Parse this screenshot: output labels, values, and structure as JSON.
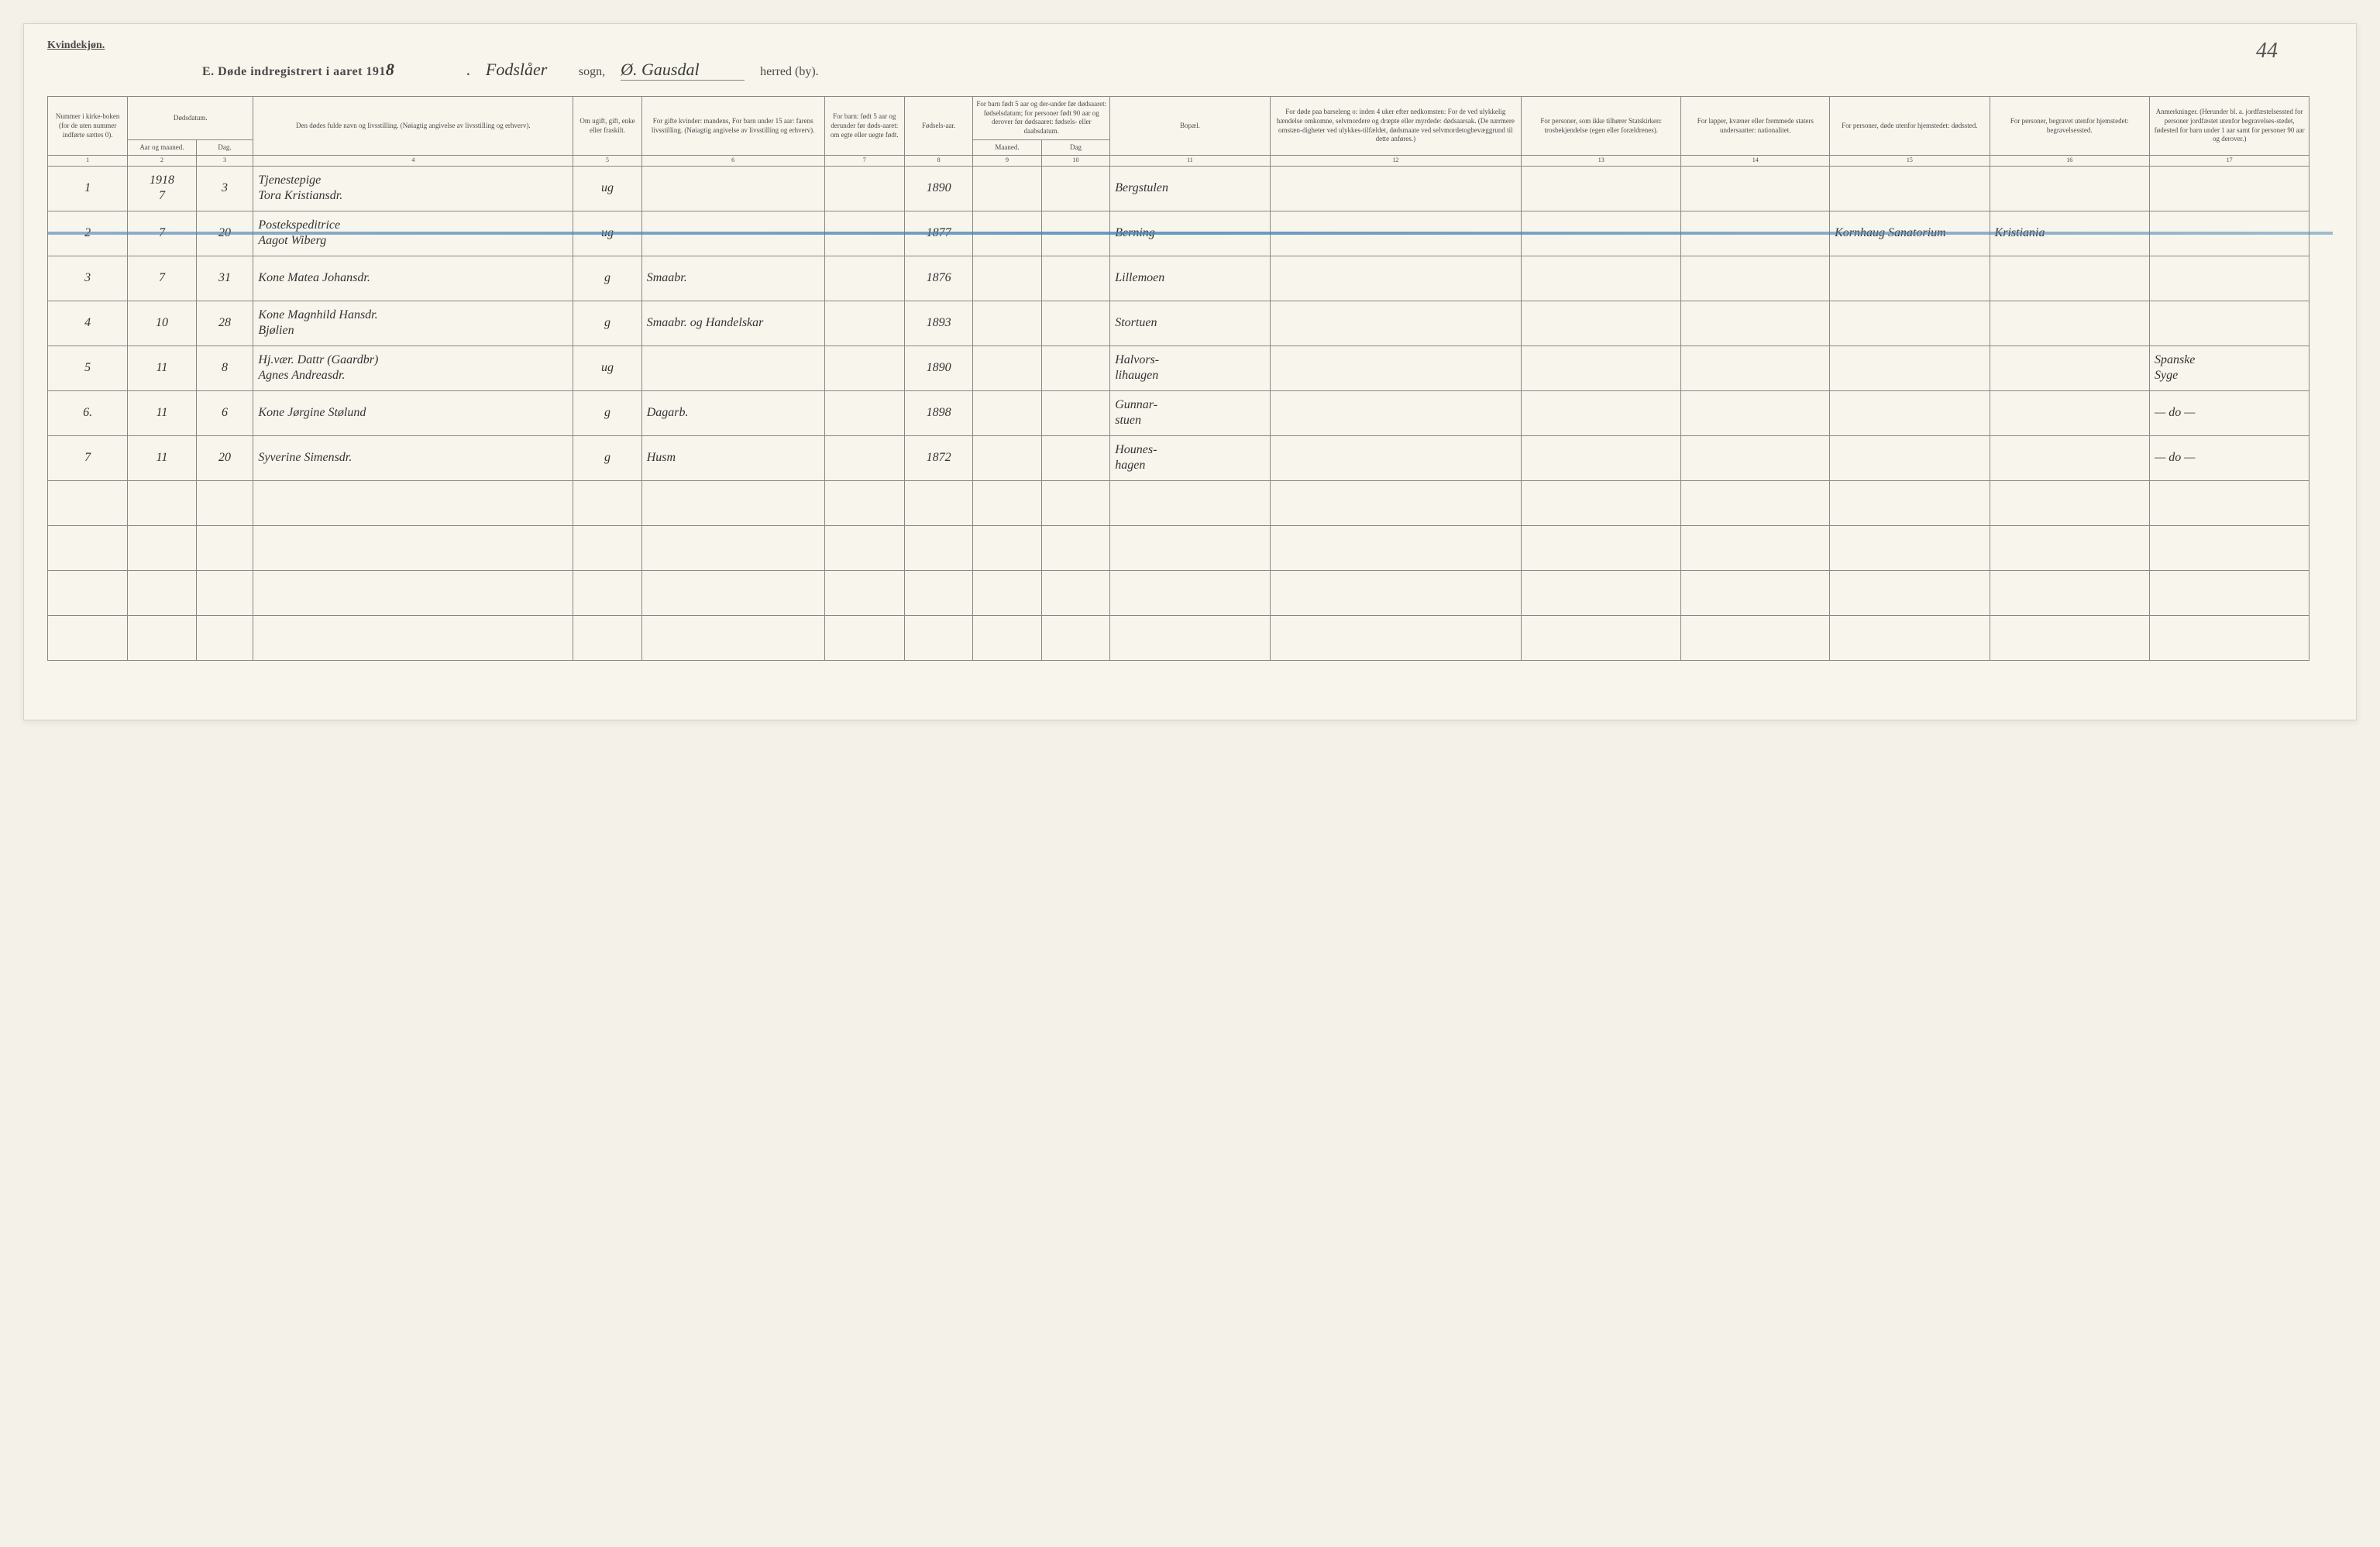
{
  "header": {
    "gender_label": "Kvindekjøn.",
    "title_prefix": "E.  Døde indregistrert i aaret 191",
    "year_suffix": "8",
    "sogn_word": "sogn,",
    "sogn_value": "Fodslåer",
    "herred_word": "herred (by).",
    "herred_value": "Ø. Gausdal",
    "page_number": "44"
  },
  "columns": {
    "c1": "Nummer i kirke-boken (for de uten nummer indførte sættes 0).",
    "c2": "Aar og maaned.",
    "c3": "Dag.",
    "c2_3_group": "Dødsdatum.",
    "c4": "Den dødes fulde navn og livsstilling.\n(Nøiagtig angivelse av livsstilling og erhverv).",
    "c5": "Om ugift, gift, enke eller fraskilt.",
    "c6": "For gifte kvinder: mandens,\nFor barn under 15 aar: farens livsstilling.\n(Nøiagtig angivelse av livsstilling og erhverv).",
    "c7": "For barn: født 5 aar og derunder før døds-aaret: om egte eller uegte født.",
    "c8": "Fødsels-aar.",
    "c9_10_group": "For barn født 5 aar og der-under før dødsaaret: fødselsdatum; for personer født 90 aar og derover før dødsaaret: fødsels- eller daabsdatum.",
    "c9": "Maaned.",
    "c10": "Dag",
    "c11": "Bopæl.",
    "c12": "For døde paa barseleng o: inden 4 uker efter nedkomsten:\nFor de ved ulykkelig hændelse omkomne, selvmordere og dræpte eller myrdede: dødsaarsak.\n(De nærmere omstæn-digheter ved ulykkes-tilfældet, dødsmaate ved selvmordetogbevæggrund til dette anføres.)",
    "c13": "For personer, som ikke tilhører Statskirken: trosbekjendelse (egen eller forældrenes).",
    "c14": "For lapper, kvæner eller fremmede staters undersaatter: nationalitet.",
    "c15": "For personer, døde utenfor hjemstedet: dødssted.",
    "c16": "For personer, begravet utenfor hjemstedet: begravelsessted.",
    "c17": "Anmerkninger.\n(Herunder bl. a. jordfæstelsessted for personer jordfæstet utenfor begravelses-stedet, fødested for barn under 1 aar samt for personer 90 aar og derover.)"
  },
  "colnums": [
    "1",
    "2",
    "3",
    "4",
    "5",
    "6",
    "7",
    "8",
    "9",
    "10",
    "11",
    "12",
    "13",
    "14",
    "15",
    "16",
    "17"
  ],
  "rows": [
    {
      "n": "1",
      "yr": "1918",
      "mo": "7",
      "dag": "3",
      "name": "Tjenestepige\nTora Kristiansdr.",
      "status": "ug",
      "spouse": "",
      "c7": "",
      "birth": "1890",
      "m": "",
      "d": "",
      "bopel": "Bergstulen",
      "c12": "",
      "c13": "",
      "c14": "",
      "c15": "",
      "c16": "",
      "c17": "",
      "struck": false
    },
    {
      "n": "2",
      "yr": "",
      "mo": "7",
      "dag": "20",
      "name": "Postekspeditrice\nAagot Wiberg",
      "status": "ug",
      "spouse": "",
      "c7": "",
      "birth": "1877",
      "m": "",
      "d": "",
      "bopel": "Berning",
      "c12": "",
      "c13": "",
      "c14": "",
      "c15": "Kornhaug Sanatorium",
      "c16": "Kristiania",
      "c17": "",
      "struck": true
    },
    {
      "n": "3",
      "yr": "",
      "mo": "7",
      "dag": "31",
      "name": "Kone Matea Johansdr.",
      "status": "g",
      "spouse": "Smaabr.",
      "c7": "",
      "birth": "1876",
      "m": "",
      "d": "",
      "bopel": "Lillemoen",
      "c12": "",
      "c13": "",
      "c14": "",
      "c15": "",
      "c16": "",
      "c17": "",
      "struck": false
    },
    {
      "n": "4",
      "yr": "",
      "mo": "10",
      "dag": "28",
      "name": "Kone Magnhild Hansdr.\nBjølien",
      "status": "g",
      "spouse": "Smaabr. og Handelskar",
      "c7": "",
      "birth": "1893",
      "m": "",
      "d": "",
      "bopel": "Stortuen",
      "c12": "",
      "c13": "",
      "c14": "",
      "c15": "",
      "c16": "",
      "c17": "",
      "struck": false
    },
    {
      "n": "5",
      "yr": "",
      "mo": "11",
      "dag": "8",
      "name": "Hj.vær. Dattr (Gaardbr)\nAgnes Andreasdr.",
      "status": "ug",
      "spouse": "",
      "c7": "",
      "birth": "1890",
      "m": "",
      "d": "",
      "bopel": "Halvors-\nlihaugen",
      "c12": "",
      "c13": "",
      "c14": "",
      "c15": "",
      "c16": "",
      "c17": "Spanske\nSyge",
      "struck": false
    },
    {
      "n": "6.",
      "yr": "",
      "mo": "11",
      "dag": "6",
      "name": "Kone Jørgine Stølund",
      "status": "g",
      "spouse": "Dagarb.",
      "c7": "",
      "birth": "1898",
      "m": "",
      "d": "",
      "bopel": "Gunnar-\nstuen",
      "c12": "",
      "c13": "",
      "c14": "",
      "c15": "",
      "c16": "",
      "c17": "— do —",
      "struck": false
    },
    {
      "n": "7",
      "yr": "",
      "mo": "11",
      "dag": "20",
      "name": "Syverine Simensdr.",
      "status": "g",
      "spouse": "Husm",
      "c7": "",
      "birth": "1872",
      "m": "",
      "d": "",
      "bopel": "Hounes-\nhagen",
      "c12": "",
      "c13": "",
      "c14": "",
      "c15": "",
      "c16": "",
      "c17": "— do —",
      "struck": false
    }
  ],
  "blank_rows": 4,
  "styling": {
    "bg": "#f7f5ec",
    "border": "#888",
    "print_text": "#4a4a4a",
    "hand_text": "#333",
    "strike_color": "#4682b4",
    "header_fontsize_pt": 9,
    "body_handwriting_fontsize_pt": 16
  }
}
